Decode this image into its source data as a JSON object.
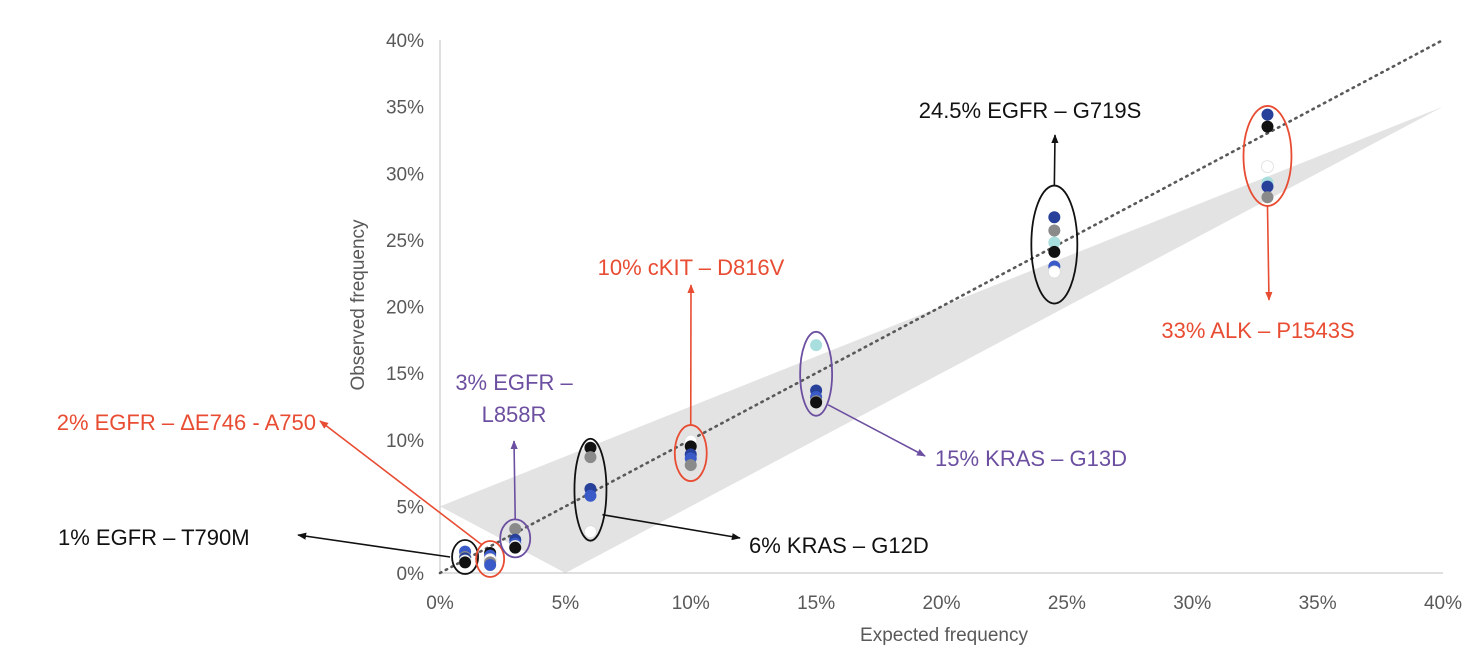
{
  "chart_data": {
    "type": "scatter",
    "title": "",
    "xlabel": "Expected frequency",
    "ylabel": "Observed frequency",
    "xlim": [
      0,
      40
    ],
    "ylim": [
      0,
      40
    ],
    "x_ticks": [
      "0%",
      "5%",
      "10%",
      "15%",
      "20%",
      "25%",
      "30%",
      "35%",
      "40%"
    ],
    "y_ticks": [
      "0%",
      "5%",
      "10%",
      "15%",
      "20%",
      "25%",
      "30%",
      "35%",
      "40%"
    ],
    "reference_line": {
      "from": [
        0,
        0
      ],
      "to": [
        40,
        40
      ],
      "style": "dotted",
      "color": "#595959"
    },
    "tolerance_band": {
      "upper": [
        [
          0,
          5
        ],
        [
          40,
          35
        ]
      ],
      "lower": [
        [
          5,
          0
        ],
        [
          40,
          35
        ]
      ],
      "color": "#e3e3e3"
    },
    "colors": {
      "dark_blue": "#27409a",
      "blue": "#3a5bc7",
      "gray": "#8a8a8a",
      "black": "#111111",
      "white": "#ffffff",
      "light_cyan": "#a9dede",
      "red": "#e84c32",
      "purple": "#6c4fa0",
      "annotation_black": "#111111"
    },
    "groups": [
      {
        "label": "1% EGFR  – T790M",
        "expected": 1,
        "ellipse_color": "black",
        "label_color": "annotation_black",
        "points": [
          {
            "y": 1.6,
            "color": "blue"
          },
          {
            "y": 1.2,
            "color": "gray"
          },
          {
            "y": 1.1,
            "color": "dark_blue"
          },
          {
            "y": 0.9,
            "color": "white"
          },
          {
            "y": 0.8,
            "color": "black"
          }
        ]
      },
      {
        "label": "2% EGFR  – ΔE746 - A750",
        "expected": 2,
        "ellipse_color": "red",
        "label_color": "red",
        "points": [
          {
            "y": 1.5,
            "color": "black"
          },
          {
            "y": 1.3,
            "color": "blue"
          },
          {
            "y": 1.0,
            "color": "white"
          },
          {
            "y": 0.8,
            "color": "gray"
          },
          {
            "y": 0.6,
            "color": "blue"
          }
        ]
      },
      {
        "label": "3% EGFR  – L858R",
        "expected": 3,
        "ellipse_color": "purple",
        "label_color": "purple",
        "points": [
          {
            "y": 3.3,
            "color": "gray"
          },
          {
            "y": 2.5,
            "color": "dark_blue"
          },
          {
            "y": 2.2,
            "color": "blue"
          },
          {
            "y": 2.0,
            "color": "white"
          },
          {
            "y": 1.9,
            "color": "black"
          }
        ]
      },
      {
        "label": "6% KRAS  – G12D",
        "expected": 6,
        "ellipse_color": "black",
        "label_color": "annotation_black",
        "points": [
          {
            "y": 9.4,
            "color": "black"
          },
          {
            "y": 8.7,
            "color": "gray"
          },
          {
            "y": 6.3,
            "color": "dark_blue"
          },
          {
            "y": 5.8,
            "color": "blue"
          },
          {
            "y": 3.1,
            "color": "white"
          }
        ]
      },
      {
        "label": "10% cKIT  – D816V",
        "expected": 10,
        "ellipse_color": "red",
        "label_color": "red",
        "points": [
          {
            "y": 9.9,
            "color": "white"
          },
          {
            "y": 9.5,
            "color": "black"
          },
          {
            "y": 8.9,
            "color": "dark_blue"
          },
          {
            "y": 8.6,
            "color": "blue"
          },
          {
            "y": 8.1,
            "color": "gray"
          }
        ]
      },
      {
        "label": "15% KRAS  – G13D",
        "expected": 15,
        "ellipse_color": "purple",
        "label_color": "purple",
        "points": [
          {
            "y": 17.1,
            "color": "light_cyan"
          },
          {
            "y": 13.7,
            "color": "dark_blue"
          },
          {
            "y": 13.2,
            "color": "blue"
          },
          {
            "y": 12.9,
            "color": "gray"
          },
          {
            "y": 12.8,
            "color": "black"
          }
        ]
      },
      {
        "label": "24.5% EGFR  – G719S",
        "expected": 24.5,
        "ellipse_color": "black",
        "label_color": "annotation_black",
        "points": [
          {
            "y": 26.7,
            "color": "dark_blue"
          },
          {
            "y": 25.7,
            "color": "gray"
          },
          {
            "y": 24.8,
            "color": "light_cyan"
          },
          {
            "y": 24.1,
            "color": "black"
          },
          {
            "y": 23.0,
            "color": "blue"
          },
          {
            "y": 22.6,
            "color": "white"
          }
        ]
      },
      {
        "label": "33% ALK  – P1543S",
        "expected": 33,
        "ellipse_color": "red",
        "label_color": "red",
        "points": [
          {
            "y": 34.4,
            "color": "dark_blue"
          },
          {
            "y": 33.5,
            "color": "black"
          },
          {
            "y": 30.5,
            "color": "white"
          },
          {
            "y": 29.3,
            "color": "light_cyan"
          },
          {
            "y": 29.0,
            "color": "dark_blue"
          },
          {
            "y": 28.2,
            "color": "gray"
          }
        ]
      }
    ]
  }
}
